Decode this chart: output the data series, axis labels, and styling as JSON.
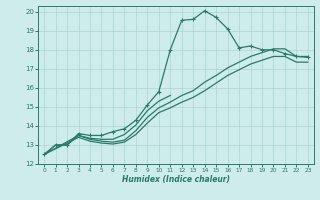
{
  "xlabel": "Humidex (Indice chaleur)",
  "xlim": [
    -0.5,
    23.5
  ],
  "ylim": [
    12,
    20.3
  ],
  "xticks": [
    0,
    1,
    2,
    3,
    4,
    5,
    6,
    7,
    8,
    9,
    10,
    11,
    12,
    13,
    14,
    15,
    16,
    17,
    18,
    19,
    20,
    21,
    22,
    23
  ],
  "yticks": [
    12,
    13,
    14,
    15,
    16,
    17,
    18,
    19,
    20
  ],
  "line_color": "#2a7a6a",
  "bg_color": "#ceecea",
  "grid_color": "#aed4d0",
  "lines": [
    {
      "x": [
        0,
        1,
        2,
        3,
        4,
        5,
        6,
        7,
        8,
        9,
        10,
        11,
        12,
        13,
        14,
        15,
        16,
        17,
        18,
        19,
        20,
        21,
        22,
        23
      ],
      "y": [
        12.5,
        13.0,
        13.0,
        13.6,
        13.5,
        13.5,
        13.7,
        13.85,
        14.3,
        15.1,
        15.8,
        18.0,
        19.55,
        19.6,
        20.05,
        19.7,
        19.1,
        18.1,
        18.2,
        18.0,
        18.0,
        17.8,
        17.65,
        17.6
      ],
      "marker": true
    },
    {
      "x": [
        0,
        1,
        2,
        3,
        4,
        5,
        6,
        7,
        8,
        9,
        10,
        11
      ],
      "y": [
        12.5,
        13.0,
        13.0,
        13.5,
        13.35,
        13.3,
        13.3,
        13.55,
        14.05,
        14.8,
        15.3,
        15.6
      ],
      "marker": false
    },
    {
      "x": [
        0,
        3,
        4,
        5,
        6,
        7,
        8,
        9,
        10,
        11,
        12,
        13,
        14,
        15,
        16,
        17,
        18,
        19,
        20,
        21,
        22,
        23
      ],
      "y": [
        12.5,
        13.5,
        13.3,
        13.2,
        13.15,
        13.25,
        13.75,
        14.45,
        14.95,
        15.25,
        15.6,
        15.85,
        16.3,
        16.65,
        17.05,
        17.35,
        17.65,
        17.85,
        18.05,
        18.05,
        17.65,
        17.65
      ],
      "marker": false
    },
    {
      "x": [
        0,
        3,
        4,
        5,
        6,
        7,
        8,
        9,
        10,
        11,
        12,
        13,
        14,
        15,
        16,
        17,
        18,
        19,
        20,
        21,
        22,
        23
      ],
      "y": [
        12.5,
        13.4,
        13.2,
        13.1,
        13.05,
        13.15,
        13.55,
        14.15,
        14.7,
        14.95,
        15.25,
        15.5,
        15.85,
        16.25,
        16.65,
        16.95,
        17.25,
        17.45,
        17.65,
        17.65,
        17.35,
        17.35
      ],
      "marker": false
    }
  ]
}
